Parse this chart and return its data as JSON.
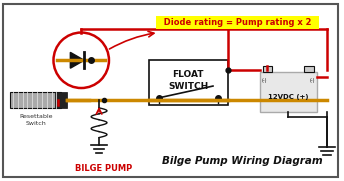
{
  "bg_color": "#ffffff",
  "border_color": "#555555",
  "title_text": "Bilge Pump Wiring Diagram",
  "title_fontsize": 7.5,
  "annotation_text": "  Diode rating = Pump rating x 2  ",
  "annotation_bg": "#ffff00",
  "annotation_color": "#cc0000",
  "annotation_fontsize": 6.0,
  "red_wire_color": "#cc0000",
  "orange_wire_color": "#cc8800",
  "black_wire_color": "#111111",
  "gray_color": "#999999",
  "float_switch_label1": "FLOAT",
  "float_switch_label2": "SWITCH",
  "bilge_pump_label": "BILGE PUMP",
  "resettable_label1": "Resettable",
  "resettable_label2": "Switch",
  "battery_label": "12VDC (+)"
}
